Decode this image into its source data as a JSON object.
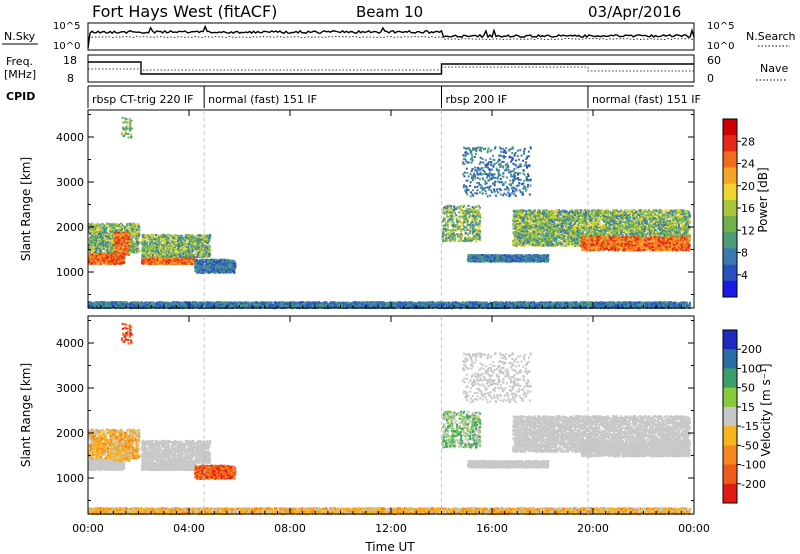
{
  "header": {
    "station": "Fort Hays West (fitACF)",
    "beam": "Beam 10",
    "date": "03/Apr/2016"
  },
  "noise_panel": {
    "left_label": "N.Sky",
    "right_label": "N.Search",
    "left_ticks": [
      "10^5",
      "10^0"
    ],
    "right_ticks": [
      "10^5",
      "10^0"
    ]
  },
  "freq_panel": {
    "left_label_1": "Freq.",
    "left_label_2": "[MHz]",
    "right_label": "Nave",
    "left_ticks": [
      "18",
      "8"
    ],
    "right_ticks": [
      "60",
      "0"
    ]
  },
  "cpid_panel": {
    "label": "CPID",
    "segments": [
      {
        "start_h": 0.0,
        "end_h": 4.6,
        "text": "rbsp CT-trig 220 IF"
      },
      {
        "start_h": 4.6,
        "end_h": 14.0,
        "text": "normal (fast) 151 IF"
      },
      {
        "start_h": 14.0,
        "end_h": 19.8,
        "text": "rbsp 200 IF"
      },
      {
        "start_h": 19.8,
        "end_h": 24.0,
        "text": "normal (fast) 151 IF"
      }
    ]
  },
  "chart_data": [
    {
      "type": "heatmap",
      "name": "power",
      "ylabel": "Slant Range [km]",
      "y_ticks": [
        "1000",
        "2000",
        "3000",
        "4000"
      ],
      "ylim": [
        200,
        4600
      ],
      "colorbar": {
        "label": "Power [dB]",
        "ticks": [
          "4",
          "8",
          "12",
          "16",
          "20",
          "24",
          "28"
        ],
        "range": [
          0,
          32
        ],
        "colors": [
          "#1a1ae6",
          "#2a50c0",
          "#3a7ab0",
          "#4c9c7c",
          "#6fb14c",
          "#a8c73a",
          "#f0d531",
          "#f5a526",
          "#f06d1e",
          "#e52a17",
          "#cc0000"
        ]
      }
    },
    {
      "type": "heatmap",
      "name": "velocity",
      "ylabel": "Slant Range [km]",
      "y_ticks": [
        "1000",
        "2000",
        "3000",
        "4000"
      ],
      "ylim": [
        200,
        4600
      ],
      "colorbar": {
        "label": "Velocity [m s⁻¹]",
        "ticks": [
          "200",
          "100",
          "50",
          "15",
          "-15",
          "-50",
          "-100",
          "-200"
        ],
        "colors": [
          "#1f2bbd",
          "#2a6ea8",
          "#3b9f6a",
          "#86cc3e",
          "#c8c8c8",
          "#f7b51d",
          "#f5871c",
          "#ef5b18",
          "#e21c14"
        ]
      }
    }
  ],
  "x_axis": {
    "label": "Time UT",
    "ticks": [
      "00:00",
      "04:00",
      "08:00",
      "12:00",
      "16:00",
      "20:00",
      "00:00"
    ],
    "range_h": [
      0,
      24
    ]
  }
}
